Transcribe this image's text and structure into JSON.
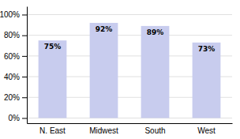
{
  "chart_data": {
    "type": "bar",
    "categories": [
      "N. East",
      "Midwest",
      "South",
      "West"
    ],
    "values": [
      75,
      92,
      89,
      73
    ],
    "value_labels": [
      "75%",
      "92%",
      "89%",
      "73%"
    ],
    "data_labels": true,
    "color": "#c8ccee",
    "ylim": [
      -5,
      108
    ],
    "yticks": [
      {
        "value": 0,
        "label": "0%"
      },
      {
        "value": 20,
        "label": "20%"
      },
      {
        "value": 40,
        "label": "40%"
      },
      {
        "value": 60,
        "label": "60%"
      },
      {
        "value": 80,
        "label": "80%"
      },
      {
        "value": 100,
        "label": "100%"
      }
    ],
    "grid": true
  }
}
